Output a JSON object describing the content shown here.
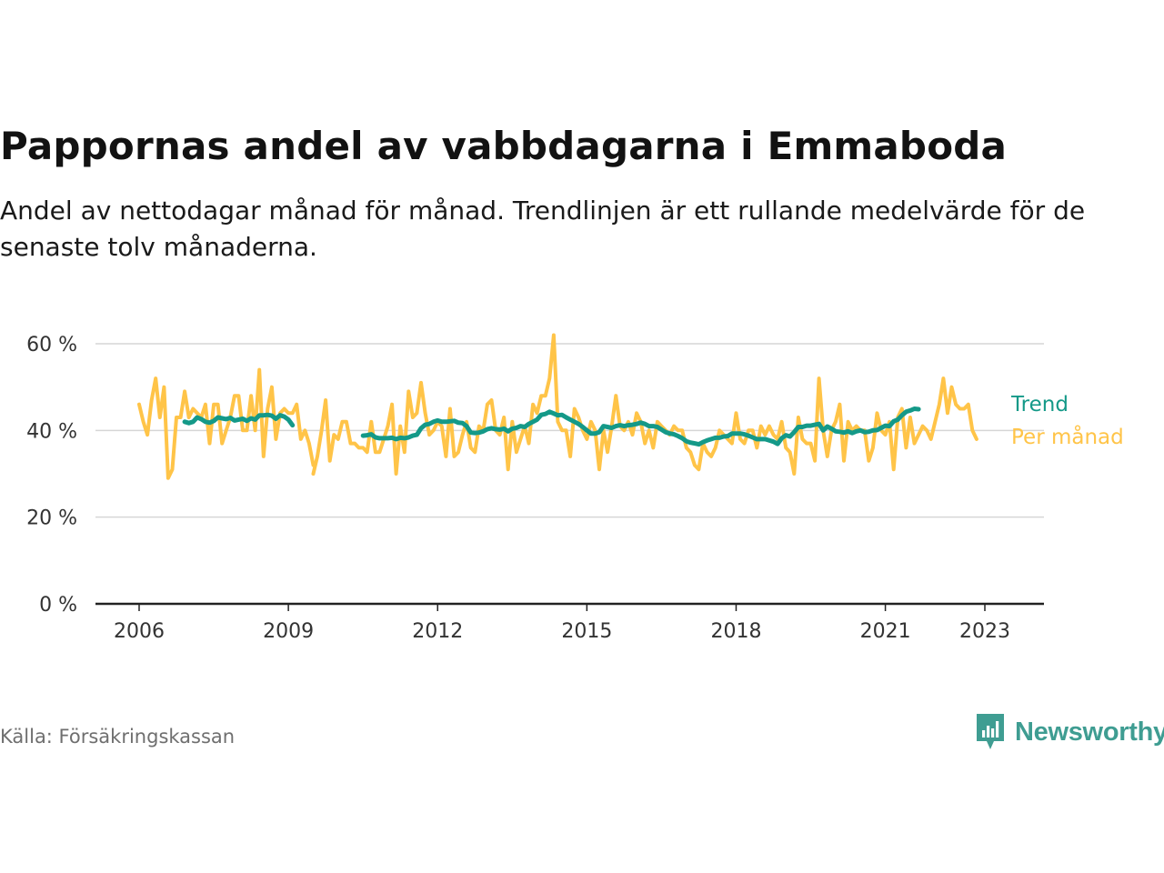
{
  "header": {
    "title": "Pappornas andel av vabbdagarna i Emmaboda",
    "subtitle": "Andel av nettodagar månad för månad. Trendlinjen är ett rullande medelvärde för de senaste tolv månaderna."
  },
  "footer": {
    "source": "Källa: Försäkringskassan",
    "brand": "Newsworthy"
  },
  "colors": {
    "trend": "#149988",
    "monthly": "#ffc448",
    "grid": "#d6d6d6",
    "axis": "#222222",
    "brand": "#3f9d92"
  },
  "chart_data": {
    "type": "line",
    "x_unit": "year",
    "xlim": [
      2006,
      2024.2
    ],
    "ylim": [
      0,
      60
    ],
    "yticks": [
      0,
      20,
      40,
      60
    ],
    "ytick_labels": [
      "0 %",
      "20 %",
      "40 %",
      "60 %"
    ],
    "xticks": [
      2006,
      2009,
      2012,
      2015,
      2018,
      2021,
      2023
    ],
    "xtick_labels": [
      "2006",
      "2009",
      "2012",
      "2015",
      "2018",
      "2021",
      "2023"
    ],
    "grid": true,
    "legend": "inline-right",
    "series": [
      {
        "name": "Per månad",
        "color": "#ffc448",
        "segments": [
          {
            "start": 2006.0,
            "step": 0.0833333,
            "values": [
              46,
              42,
              39,
              47,
              52,
              43,
              50,
              29,
              31,
              43,
              43,
              49,
              43,
              45,
              44,
              43,
              46,
              37,
              46,
              46,
              37,
              40,
              43,
              48,
              48,
              40,
              40,
              48,
              40,
              54,
              34,
              45,
              50,
              38,
              44,
              45,
              44,
              44,
              46,
              38,
              40,
              37,
              32
            ]
          },
          {
            "start": 2009.5,
            "step": 0.0833333,
            "values": [
              30,
              34,
              40,
              47,
              33,
              39,
              38,
              42,
              42,
              37,
              37,
              36,
              36,
              35,
              42,
              35,
              35,
              38,
              41,
              46,
              30,
              41,
              35,
              49,
              43,
              44,
              51,
              44,
              39,
              40,
              42,
              41,
              34,
              45,
              34,
              35,
              39,
              42,
              36,
              35,
              41,
              40,
              46,
              47,
              40,
              39,
              43,
              31,
              42,
              35,
              38,
              41,
              37,
              46,
              44,
              48,
              48,
              52,
              62,
              42,
              40,
              40,
              34,
              45,
              43,
              40,
              38,
              42,
              40,
              31,
              40,
              35,
              41,
              48,
              41,
              40,
              42,
              39,
              44,
              42,
              37,
              40,
              36,
              42,
              41,
              40,
              39,
              41,
              40,
              40,
              36,
              35,
              32,
              31,
              37,
              35,
              34,
              36,
              40,
              39,
              38,
              37,
              44,
              38,
              37,
              40,
              40,
              36,
              41,
              39,
              41,
              39,
              38,
              42,
              36,
              35,
              30,
              43,
              38,
              37,
              37,
              33,
              52,
              40,
              34,
              40,
              42,
              46,
              33,
              42,
              40,
              41,
              40,
              40,
              33,
              36,
              44,
              40,
              39,
              42,
              31,
              43,
              45,
              36,
              43,
              37,
              39,
              41,
              40,
              38,
              42,
              46,
              52,
              44,
              50,
              46,
              45,
              45,
              46,
              40,
              38
            ]
          }
        ]
      },
      {
        "name": "Trend",
        "color": "#149988",
        "segments": [
          {
            "start": 2006.9167,
            "step": 0.0833333,
            "values": [
              42,
              41.7,
              42,
              43,
              42.6,
              42,
              41.8,
              42.2,
              43,
              42.8,
              42.6,
              42.9,
              42.3,
              42.5,
              42.7,
              42.2,
              42.8,
              42.5,
              43.5,
              43.5,
              43.6,
              43.4,
              42.7,
              43.5,
              43.2,
              42.5,
              41.2
            ]
          },
          {
            "start": 2010.5,
            "step": 0.0833333,
            "values": [
              38.8,
              38.9,
              39.1,
              38.4,
              38.2,
              38.2,
              38.2,
              38.3,
              38,
              38.3,
              38.2,
              38.4,
              38.8,
              39,
              40.5,
              41.3,
              41.5,
              42,
              42.3,
              42,
              42,
              42.1,
              42.2,
              41.8,
              41.7,
              41,
              39.5,
              39.4,
              39.5,
              39.8,
              40.3,
              40.5,
              40.3,
              40.2,
              40.4,
              39.8,
              40.4,
              40.6,
              41,
              40.8,
              41.5,
              42,
              42.5,
              43.6,
              43.8,
              44.3,
              43.9,
              43.5,
              43.6,
              43,
              42.5,
              42,
              41.5,
              40.8,
              40,
              39.3,
              39.3,
              39.6,
              41,
              40.8,
              40.6,
              41,
              41.2,
              41,
              41.2,
              41.3,
              41.5,
              41.8,
              41.5,
              41,
              41,
              40.8,
              40.2,
              39.6,
              39.3,
              39.1,
              38.7,
              38.2,
              37.5,
              37.2,
              37,
              36.8,
              37.3,
              37.7,
              38,
              38.3,
              38.3,
              38.6,
              38.7,
              39.3,
              39.3,
              39.3,
              39.1,
              38.8,
              38.4,
              38,
              38,
              38,
              37.7,
              37.4,
              36.9,
              38.2,
              38.9,
              38.6,
              39.6,
              40.8,
              40.8,
              41.1,
              41.1,
              41.3,
              41.5,
              40,
              40.9,
              40.4,
              39.8,
              39.7,
              39.5,
              39.8,
              39.4,
              39.8,
              40,
              39.6,
              39.7,
              40,
              40.1,
              40.6,
              41.1,
              41,
              42.1,
              42.5,
              43.5,
              44.3,
              44.6,
              45,
              44.9
            ]
          }
        ]
      }
    ]
  }
}
